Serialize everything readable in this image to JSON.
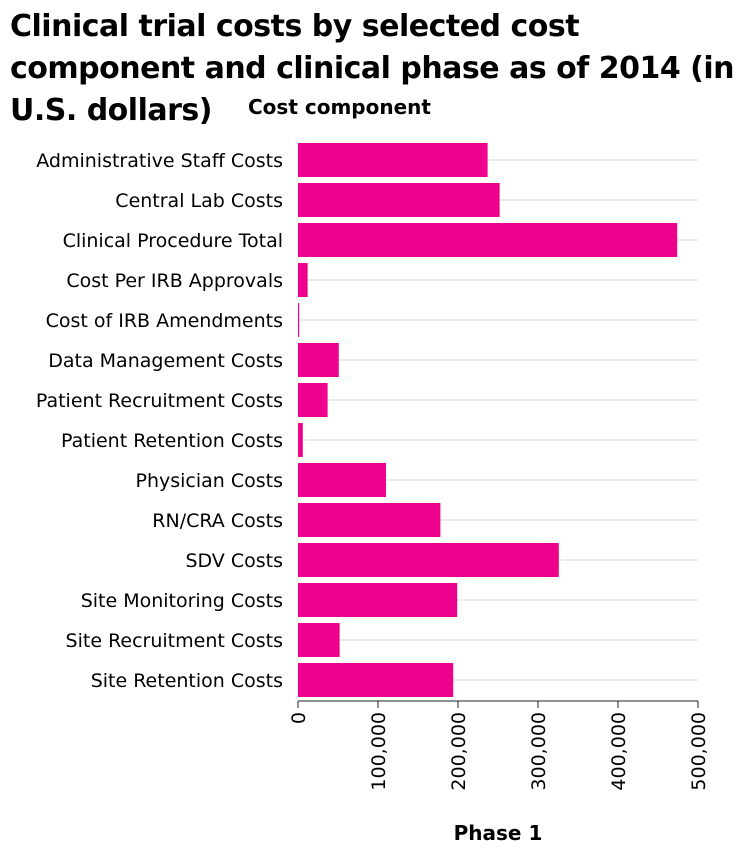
{
  "chart_data": {
    "type": "bar",
    "orientation": "horizontal",
    "title": "Clinical trial costs by selected cost component and clinical phase as of 2014 (in U.S. dollars)",
    "ylabel": "Cost component",
    "xlabel": "Phase 1",
    "categories": [
      "Administrative Staff Costs",
      "Central Lab Costs",
      "Clinical Procedure Total",
      "Cost Per IRB Approvals",
      "Cost of IRB Amendments",
      "Data Management Costs",
      "Patient Recruitment Costs",
      "Patient Retention Costs",
      "Physician Costs",
      "RN/CRA Costs",
      "SDV Costs",
      "Site Monitoring Costs",
      "Site Recruitment Costs",
      "Site Retention Costs"
    ],
    "values": [
      237000,
      252000,
      474000,
      12000,
      1500,
      51000,
      37000,
      6000,
      110000,
      178000,
      326000,
      199000,
      52000,
      194000
    ],
    "xlim": [
      0,
      500000
    ],
    "xticks": [
      0,
      100000,
      200000,
      300000,
      400000,
      500000
    ],
    "xtick_labels": [
      "0",
      "100,000",
      "200,000",
      "300,000",
      "400,000",
      "500,000"
    ],
    "bar_color": "#ec008c",
    "grid": true
  }
}
